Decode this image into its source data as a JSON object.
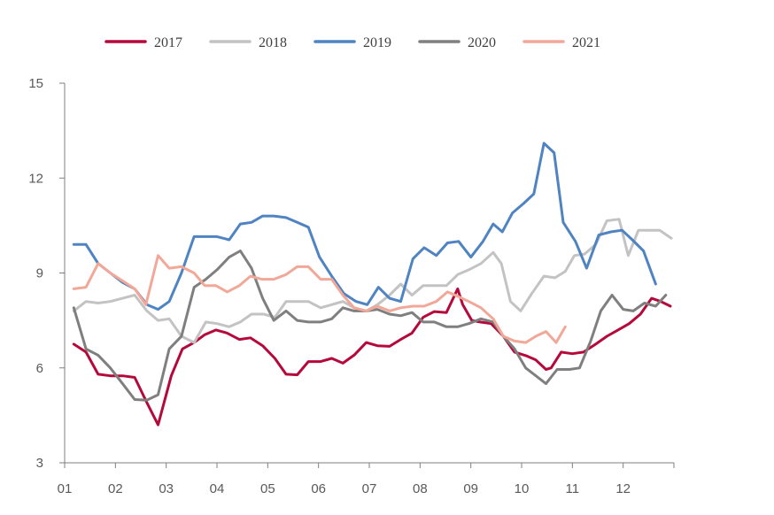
{
  "chart_data": {
    "type": "line",
    "title": "",
    "xlabel": "",
    "ylabel": "",
    "ylim": [
      3,
      15
    ],
    "yticks": [
      3,
      6,
      9,
      12,
      15
    ],
    "xlim": [
      1,
      13
    ],
    "xticks": [
      "01",
      "02",
      "03",
      "04",
      "05",
      "06",
      "07",
      "08",
      "09",
      "10",
      "11",
      "12"
    ],
    "grid": false,
    "legend": "top",
    "series": [
      {
        "name": "2017",
        "color": "#b5093c",
        "x": [
          1.18,
          1.42,
          1.66,
          1.9,
          2.14,
          2.38,
          2.62,
          2.84,
          3.1,
          3.32,
          3.55,
          3.76,
          3.98,
          4.2,
          4.44,
          4.66,
          4.9,
          5.14,
          5.36,
          5.58,
          5.8,
          6.04,
          6.26,
          6.48,
          6.7,
          6.94,
          7.16,
          7.4,
          7.62,
          7.84,
          8.06,
          8.28,
          8.52,
          8.74,
          8.84,
          9.02,
          9.18,
          9.4,
          9.64,
          9.86,
          10.1,
          10.28,
          10.48,
          10.58,
          10.78,
          11.0,
          11.22,
          11.46,
          11.68,
          11.9,
          12.12,
          12.34,
          12.56,
          12.74,
          12.93
        ],
        "y": [
          6.75,
          6.5,
          5.8,
          5.75,
          5.75,
          5.7,
          4.9,
          4.2,
          5.75,
          6.6,
          6.8,
          7.05,
          7.2,
          7.1,
          6.9,
          6.95,
          6.7,
          6.3,
          5.8,
          5.78,
          6.2,
          6.2,
          6.3,
          6.15,
          6.4,
          6.8,
          6.7,
          6.68,
          6.9,
          7.1,
          7.6,
          7.78,
          7.75,
          8.5,
          8.0,
          7.5,
          7.45,
          7.4,
          7.0,
          6.5,
          6.38,
          6.25,
          5.95,
          6.0,
          6.5,
          6.45,
          6.5,
          6.75,
          7.0,
          7.2,
          7.4,
          7.7,
          8.2,
          8.1,
          7.95
        ]
      },
      {
        "name": "2018",
        "color": "#c3c3c3",
        "x": [
          1.18,
          1.42,
          1.66,
          1.9,
          2.14,
          2.38,
          2.62,
          2.84,
          3.06,
          3.3,
          3.55,
          3.78,
          4.0,
          4.24,
          4.46,
          4.68,
          4.92,
          5.14,
          5.36,
          5.58,
          5.8,
          6.04,
          6.26,
          6.48,
          6.7,
          6.94,
          7.16,
          7.4,
          7.62,
          7.84,
          8.06,
          8.28,
          8.52,
          8.74,
          8.96,
          9.2,
          9.44,
          9.6,
          9.78,
          9.98,
          10.2,
          10.44,
          10.66,
          10.86,
          11.04,
          11.24,
          11.46,
          11.68,
          11.92,
          12.1,
          12.3,
          12.52,
          12.72,
          12.95
        ],
        "y": [
          7.8,
          8.1,
          8.05,
          8.1,
          8.2,
          8.3,
          7.8,
          7.5,
          7.55,
          7.0,
          6.8,
          7.45,
          7.4,
          7.3,
          7.45,
          7.7,
          7.7,
          7.6,
          8.1,
          8.1,
          8.1,
          7.9,
          8.0,
          8.1,
          7.9,
          7.8,
          8.0,
          8.3,
          8.65,
          8.3,
          8.6,
          8.6,
          8.6,
          8.95,
          9.1,
          9.3,
          9.65,
          9.3,
          8.1,
          7.8,
          8.35,
          8.9,
          8.85,
          9.05,
          9.55,
          9.6,
          9.9,
          10.65,
          10.7,
          9.55,
          10.35,
          10.35,
          10.35,
          10.1
        ]
      },
      {
        "name": "2019",
        "color": "#4f83c2",
        "x": [
          1.18,
          1.42,
          1.66,
          1.9,
          2.14,
          2.38,
          2.62,
          2.84,
          3.06,
          3.3,
          3.55,
          3.78,
          4.0,
          4.24,
          4.46,
          4.68,
          4.9,
          5.12,
          5.36,
          5.58,
          5.8,
          6.02,
          6.26,
          6.5,
          6.74,
          6.96,
          7.18,
          7.4,
          7.62,
          7.86,
          8.08,
          8.32,
          8.54,
          8.76,
          9.0,
          9.24,
          9.44,
          9.62,
          9.82,
          10.04,
          10.24,
          10.44,
          10.64,
          10.82,
          11.06,
          11.28,
          11.52,
          11.76,
          11.98,
          12.18,
          12.4,
          12.64
        ],
        "y": [
          9.9,
          9.9,
          9.3,
          9.0,
          8.7,
          8.5,
          8.0,
          7.85,
          8.1,
          9.0,
          10.15,
          10.15,
          10.15,
          10.05,
          10.55,
          10.6,
          10.8,
          10.8,
          10.75,
          10.6,
          10.45,
          9.5,
          8.9,
          8.35,
          8.1,
          8.0,
          8.55,
          8.2,
          8.1,
          9.45,
          9.8,
          9.55,
          9.95,
          10.0,
          9.5,
          10.0,
          10.55,
          10.3,
          10.9,
          11.2,
          11.5,
          13.1,
          12.8,
          10.6,
          10.0,
          9.15,
          10.2,
          10.3,
          10.35,
          10.05,
          9.7,
          8.65
        ]
      },
      {
        "name": "2020",
        "color": "#7f7f7f",
        "x": [
          1.18,
          1.42,
          1.66,
          1.9,
          2.14,
          2.38,
          2.62,
          2.84,
          3.06,
          3.3,
          3.55,
          3.78,
          4.0,
          4.24,
          4.46,
          4.68,
          4.9,
          5.12,
          5.36,
          5.58,
          5.8,
          6.04,
          6.26,
          6.48,
          6.7,
          6.94,
          7.16,
          7.4,
          7.62,
          7.84,
          8.06,
          8.28,
          8.52,
          8.74,
          8.96,
          9.2,
          9.44,
          9.64,
          9.86,
          10.08,
          10.28,
          10.48,
          10.7,
          10.94,
          11.14,
          11.36,
          11.56,
          11.78,
          12.0,
          12.2,
          12.42,
          12.64,
          12.84
        ],
        "y": [
          7.9,
          6.6,
          6.4,
          6.0,
          5.5,
          5.0,
          4.98,
          5.15,
          6.6,
          7.0,
          8.55,
          8.8,
          9.1,
          9.5,
          9.7,
          9.15,
          8.2,
          7.5,
          7.8,
          7.5,
          7.45,
          7.45,
          7.55,
          7.9,
          7.8,
          7.8,
          7.85,
          7.7,
          7.65,
          7.75,
          7.45,
          7.45,
          7.3,
          7.3,
          7.4,
          7.55,
          7.45,
          7.0,
          6.6,
          6.0,
          5.75,
          5.5,
          5.95,
          5.95,
          6.0,
          6.85,
          7.8,
          8.3,
          7.85,
          7.8,
          8.05,
          7.95,
          8.3
        ]
      },
      {
        "name": "2021",
        "color": "#f2a898",
        "x": [
          1.18,
          1.42,
          1.66,
          1.9,
          2.14,
          2.38,
          2.6,
          2.84,
          3.06,
          3.3,
          3.55,
          3.76,
          3.98,
          4.2,
          4.44,
          4.66,
          4.88,
          5.12,
          5.36,
          5.58,
          5.8,
          6.04,
          6.26,
          6.48,
          6.7,
          6.94,
          7.16,
          7.4,
          7.62,
          7.86,
          8.08,
          8.32,
          8.54,
          8.76,
          8.96,
          9.2,
          9.44,
          9.64,
          9.86,
          10.08,
          10.28,
          10.48,
          10.68,
          10.86
        ],
        "y": [
          8.5,
          8.55,
          9.3,
          9.0,
          8.75,
          8.5,
          8.0,
          9.55,
          9.15,
          9.2,
          9.0,
          8.6,
          8.6,
          8.4,
          8.6,
          8.9,
          8.8,
          8.8,
          8.95,
          9.2,
          9.2,
          8.8,
          8.8,
          8.3,
          7.9,
          7.8,
          7.95,
          7.8,
          7.9,
          7.95,
          7.95,
          8.1,
          8.4,
          8.25,
          8.1,
          7.9,
          7.55,
          7.0,
          6.85,
          6.8,
          7.0,
          7.15,
          6.8,
          7.3
        ]
      }
    ]
  }
}
